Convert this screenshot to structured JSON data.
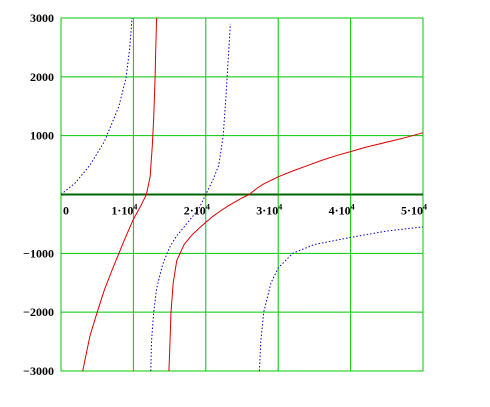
{
  "chart_data": {
    "type": "line",
    "title": "",
    "xlabel": "",
    "ylabel": "",
    "xlim": [
      0,
      50000
    ],
    "ylim": [
      -3000,
      3000
    ],
    "grid": true,
    "x_ticks": [
      {
        "value": 0,
        "mantissa": "0",
        "exponent": ""
      },
      {
        "value": 10000,
        "mantissa": "1·10",
        "exponent": "4"
      },
      {
        "value": 20000,
        "mantissa": "2·10",
        "exponent": "4"
      },
      {
        "value": 30000,
        "mantissa": "3·10",
        "exponent": "4"
      },
      {
        "value": 40000,
        "mantissa": "4·10",
        "exponent": "4"
      },
      {
        "value": 50000,
        "mantissa": "5·10",
        "exponent": "4"
      }
    ],
    "y_ticks": [
      {
        "value": 3000,
        "label": "3000"
      },
      {
        "value": 2000,
        "label": "2000"
      },
      {
        "value": 1000,
        "label": "1000"
      },
      {
        "value": -1000,
        "label": "−1000"
      },
      {
        "value": -2000,
        "label": "−2000"
      },
      {
        "value": -3000,
        "label": "−3000"
      }
    ],
    "series": [
      {
        "color": "#dd0000",
        "dash": "solid",
        "segments": [
          [
            [
              3000,
              -3000
            ],
            [
              4000,
              -2400
            ],
            [
              5000,
              -2000
            ],
            [
              6000,
              -1620
            ],
            [
              7000,
              -1300
            ],
            [
              8000,
              -1000
            ],
            [
              9000,
              -700
            ],
            [
              10000,
              -420
            ],
            [
              11000,
              -200
            ],
            [
              11800,
              0
            ],
            [
              12300,
              300
            ],
            [
              12600,
              800
            ],
            [
              12800,
              1300
            ],
            [
              13000,
              2000
            ],
            [
              13100,
              2500
            ],
            [
              13200,
              3000
            ]
          ],
          [
            [
              14900,
              -3000
            ],
            [
              15000,
              -2700
            ],
            [
              15200,
              -2000
            ],
            [
              15500,
              -1500
            ],
            [
              16000,
              -1120
            ],
            [
              17000,
              -850
            ],
            [
              18000,
              -700
            ],
            [
              19000,
              -580
            ],
            [
              20000,
              -470
            ],
            [
              21000,
              -370
            ],
            [
              22000,
              -280
            ],
            [
              23000,
              -200
            ],
            [
              24000,
              -130
            ],
            [
              25000,
              -60
            ],
            [
              26000,
              0
            ],
            [
              27000,
              100
            ],
            [
              28000,
              180
            ],
            [
              30000,
              300
            ],
            [
              32000,
              400
            ],
            [
              34000,
              490
            ],
            [
              36000,
              580
            ],
            [
              38000,
              660
            ],
            [
              40000,
              730
            ],
            [
              42000,
              800
            ],
            [
              44000,
              860
            ],
            [
              46000,
              920
            ],
            [
              48000,
              980
            ],
            [
              50000,
              1050
            ]
          ]
        ]
      },
      {
        "color": "#0000cc",
        "dash": "dotted",
        "segments": [
          [
            [
              0,
              0
            ],
            [
              2000,
              200
            ],
            [
              4000,
              500
            ],
            [
              6000,
              900
            ],
            [
              8000,
              1500
            ],
            [
              9000,
              2000
            ],
            [
              9500,
              2500
            ],
            [
              9800,
              3000
            ]
          ],
          [
            [
              12400,
              -3000
            ],
            [
              12500,
              -2500
            ],
            [
              12800,
              -2000
            ],
            [
              13200,
              -1600
            ],
            [
              14000,
              -1200
            ],
            [
              15000,
              -900
            ],
            [
              16000,
              -700
            ],
            [
              17000,
              -550
            ],
            [
              18000,
              -400
            ],
            [
              19000,
              -250
            ],
            [
              20000,
              0
            ],
            [
              21000,
              250
            ],
            [
              21800,
              500
            ],
            [
              22400,
              1000
            ],
            [
              22800,
              1700
            ],
            [
              23100,
              2300
            ],
            [
              23400,
              2900
            ]
          ],
          [
            [
              27400,
              -3000
            ],
            [
              27600,
              -2500
            ],
            [
              28000,
              -2000
            ],
            [
              29000,
              -1500
            ],
            [
              30000,
              -1250
            ],
            [
              32000,
              -1000
            ],
            [
              35000,
              -850
            ],
            [
              40000,
              -730
            ],
            [
              45000,
              -620
            ],
            [
              50000,
              -550
            ]
          ]
        ]
      }
    ]
  }
}
